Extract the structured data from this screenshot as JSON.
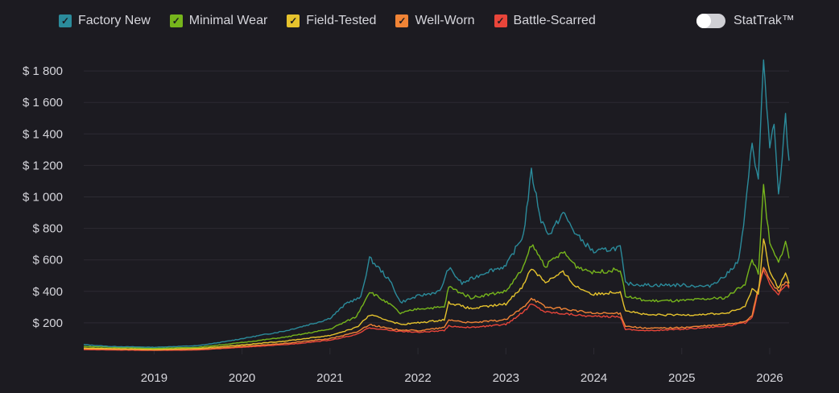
{
  "legend": [
    {
      "label": "Factory New",
      "color": "#2b8b9b"
    },
    {
      "label": "Minimal Wear",
      "color": "#76b51c"
    },
    {
      "label": "Field-Tested",
      "color": "#e6c32d"
    },
    {
      "label": "Well-Worn",
      "color": "#f08436"
    },
    {
      "label": "Battle-Scarred",
      "color": "#e8453a"
    }
  ],
  "stattrak": {
    "label": "StatTrak™",
    "enabled": false
  },
  "chart_data": {
    "type": "line",
    "xlim": [
      2018.2,
      2026.22
    ],
    "ylim": [
      0,
      1900
    ],
    "yticks": [
      200,
      400,
      600,
      800,
      1000,
      1200,
      1400,
      1600,
      1800
    ],
    "ytick_labels": [
      "$ 200",
      "$ 400",
      "$ 600",
      "$ 800",
      "$ 1 000",
      "$ 1 200",
      "$ 1 400",
      "$ 1 600",
      "$ 1 800"
    ],
    "xticks": [
      2019,
      2020,
      2021,
      2022,
      2023,
      2024,
      2025,
      2026
    ],
    "xtick_labels": [
      "2019",
      "2020",
      "2021",
      "2022",
      "2023",
      "2024",
      "2025",
      "2026"
    ],
    "grid": true,
    "legend_position": "top",
    "series": [
      {
        "name": "Factory New",
        "points": [
          [
            2018.2,
            62
          ],
          [
            2018.5,
            50
          ],
          [
            2019,
            45
          ],
          [
            2019.5,
            55
          ],
          [
            2019.8,
            80
          ],
          [
            2020,
            100
          ],
          [
            2020.5,
            150
          ],
          [
            2020.9,
            210
          ],
          [
            2021,
            230
          ],
          [
            2021.2,
            330
          ],
          [
            2021.35,
            360
          ],
          [
            2021.45,
            610
          ],
          [
            2021.6,
            520
          ],
          [
            2021.7,
            450
          ],
          [
            2021.8,
            330
          ],
          [
            2022,
            370
          ],
          [
            2022.25,
            400
          ],
          [
            2022.35,
            550
          ],
          [
            2022.5,
            450
          ],
          [
            2022.8,
            530
          ],
          [
            2023,
            560
          ],
          [
            2023.2,
            760
          ],
          [
            2023.29,
            1160
          ],
          [
            2023.4,
            850
          ],
          [
            2023.5,
            760
          ],
          [
            2023.65,
            900
          ],
          [
            2023.8,
            760
          ],
          [
            2024,
            650
          ],
          [
            2024.3,
            680
          ],
          [
            2024.36,
            450
          ],
          [
            2024.6,
            440
          ],
          [
            2025,
            440
          ],
          [
            2025.3,
            430
          ],
          [
            2025.5,
            500
          ],
          [
            2025.65,
            600
          ],
          [
            2025.72,
            900
          ],
          [
            2025.8,
            1350
          ],
          [
            2025.87,
            1100
          ],
          [
            2025.93,
            1880
          ],
          [
            2026,
            1300
          ],
          [
            2026.05,
            1450
          ],
          [
            2026.1,
            1000
          ],
          [
            2026.18,
            1500
          ],
          [
            2026.22,
            1230
          ]
        ]
      },
      {
        "name": "Minimal Wear",
        "points": [
          [
            2018.2,
            50
          ],
          [
            2019,
            38
          ],
          [
            2019.5,
            45
          ],
          [
            2020,
            75
          ],
          [
            2020.5,
            110
          ],
          [
            2021,
            160
          ],
          [
            2021.3,
            240
          ],
          [
            2021.45,
            400
          ],
          [
            2021.7,
            310
          ],
          [
            2021.8,
            260
          ],
          [
            2022,
            290
          ],
          [
            2022.3,
            300
          ],
          [
            2022.35,
            430
          ],
          [
            2022.6,
            360
          ],
          [
            2023,
            400
          ],
          [
            2023.2,
            550
          ],
          [
            2023.29,
            700
          ],
          [
            2023.45,
            560
          ],
          [
            2023.65,
            650
          ],
          [
            2023.8,
            560
          ],
          [
            2024,
            520
          ],
          [
            2024.3,
            540
          ],
          [
            2024.36,
            370
          ],
          [
            2024.6,
            340
          ],
          [
            2025,
            340
          ],
          [
            2025.5,
            360
          ],
          [
            2025.72,
            450
          ],
          [
            2025.8,
            600
          ],
          [
            2025.87,
            520
          ],
          [
            2025.93,
            1060
          ],
          [
            2026,
            700
          ],
          [
            2026.1,
            580
          ],
          [
            2026.18,
            720
          ],
          [
            2026.22,
            610
          ]
        ]
      },
      {
        "name": "Field-Tested",
        "points": [
          [
            2018.2,
            40
          ],
          [
            2019,
            32
          ],
          [
            2019.5,
            38
          ],
          [
            2020,
            60
          ],
          [
            2020.5,
            85
          ],
          [
            2021,
            120
          ],
          [
            2021.3,
            170
          ],
          [
            2021.45,
            250
          ],
          [
            2021.7,
            210
          ],
          [
            2021.8,
            190
          ],
          [
            2022,
            200
          ],
          [
            2022.3,
            220
          ],
          [
            2022.35,
            330
          ],
          [
            2022.6,
            290
          ],
          [
            2023,
            320
          ],
          [
            2023.2,
            440
          ],
          [
            2023.29,
            550
          ],
          [
            2023.45,
            460
          ],
          [
            2023.65,
            520
          ],
          [
            2023.8,
            430
          ],
          [
            2024,
            380
          ],
          [
            2024.3,
            400
          ],
          [
            2024.36,
            280
          ],
          [
            2024.6,
            250
          ],
          [
            2025,
            250
          ],
          [
            2025.5,
            260
          ],
          [
            2025.72,
            300
          ],
          [
            2025.8,
            420
          ],
          [
            2025.87,
            380
          ],
          [
            2025.93,
            750
          ],
          [
            2026,
            520
          ],
          [
            2026.1,
            420
          ],
          [
            2026.18,
            510
          ],
          [
            2026.22,
            450
          ]
        ]
      },
      {
        "name": "Well-Worn",
        "points": [
          [
            2018.2,
            35
          ],
          [
            2019,
            28
          ],
          [
            2019.5,
            32
          ],
          [
            2020,
            50
          ],
          [
            2020.5,
            70
          ],
          [
            2021,
            100
          ],
          [
            2021.3,
            140
          ],
          [
            2021.45,
            190
          ],
          [
            2021.7,
            160
          ],
          [
            2022,
            150
          ],
          [
            2022.3,
            170
          ],
          [
            2022.35,
            220
          ],
          [
            2022.6,
            200
          ],
          [
            2023,
            220
          ],
          [
            2023.2,
            300
          ],
          [
            2023.29,
            360
          ],
          [
            2023.45,
            300
          ],
          [
            2023.65,
            290
          ],
          [
            2024,
            260
          ],
          [
            2024.3,
            260
          ],
          [
            2024.36,
            180
          ],
          [
            2024.6,
            165
          ],
          [
            2025,
            170
          ],
          [
            2025.5,
            190
          ],
          [
            2025.72,
            210
          ],
          [
            2025.8,
            250
          ],
          [
            2025.93,
            560
          ],
          [
            2026,
            470
          ],
          [
            2026.1,
            400
          ],
          [
            2026.18,
            470
          ],
          [
            2026.22,
            430
          ]
        ]
      },
      {
        "name": "Battle-Scarred",
        "points": [
          [
            2018.2,
            30
          ],
          [
            2019,
            25
          ],
          [
            2019.5,
            28
          ],
          [
            2020,
            45
          ],
          [
            2020.5,
            62
          ],
          [
            2021,
            90
          ],
          [
            2021.3,
            125
          ],
          [
            2021.45,
            170
          ],
          [
            2021.7,
            150
          ],
          [
            2022,
            140
          ],
          [
            2022.3,
            150
          ],
          [
            2022.35,
            180
          ],
          [
            2022.6,
            170
          ],
          [
            2023,
            190
          ],
          [
            2023.2,
            270
          ],
          [
            2023.29,
            320
          ],
          [
            2023.45,
            270
          ],
          [
            2023.65,
            260
          ],
          [
            2024,
            240
          ],
          [
            2024.3,
            240
          ],
          [
            2024.36,
            160
          ],
          [
            2024.6,
            150
          ],
          [
            2025,
            160
          ],
          [
            2025.5,
            180
          ],
          [
            2025.72,
            200
          ],
          [
            2025.8,
            230
          ],
          [
            2025.93,
            540
          ],
          [
            2026,
            440
          ],
          [
            2026.1,
            380
          ],
          [
            2026.18,
            440
          ],
          [
            2026.22,
            420
          ]
        ]
      }
    ]
  }
}
